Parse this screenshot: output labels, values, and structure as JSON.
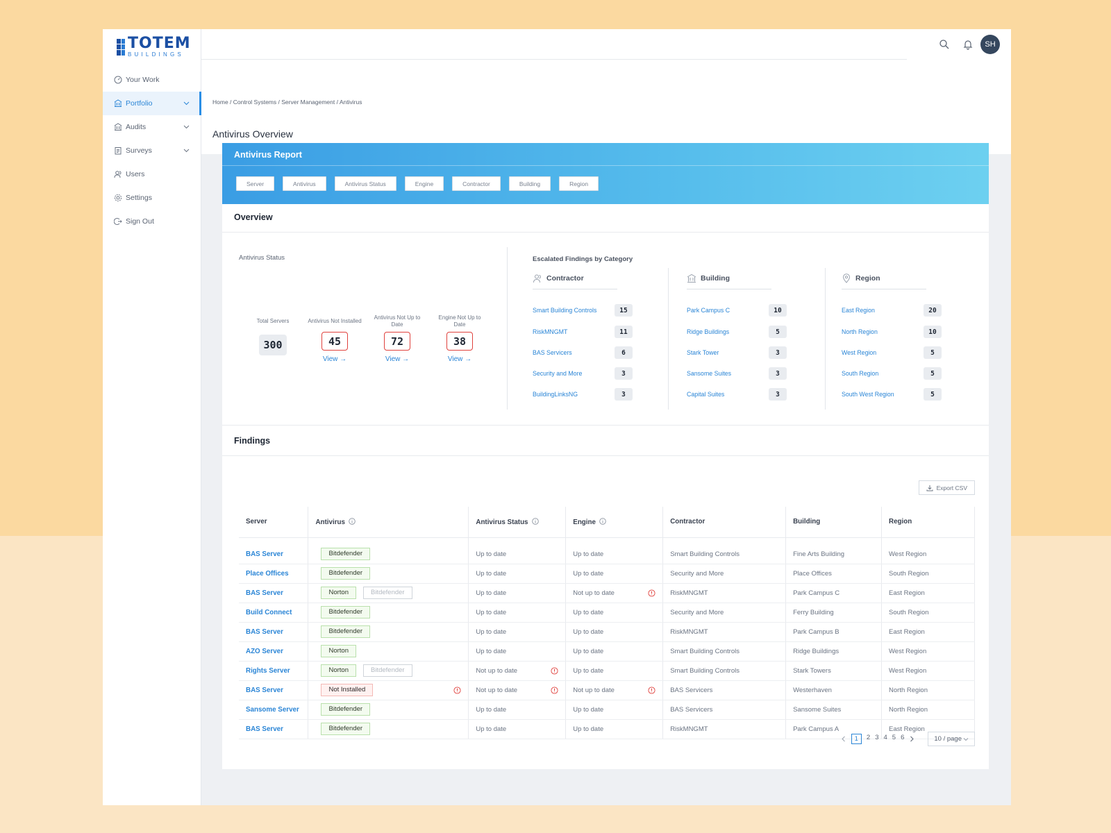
{
  "brand": {
    "name": "TOTEM",
    "sub": "BUILDINGS"
  },
  "sidebar": {
    "items": [
      {
        "label": "Your Work",
        "icon": "dashboard-icon"
      },
      {
        "label": "Portfolio",
        "icon": "building-icon",
        "active": true
      },
      {
        "label": "Audits",
        "icon": "bank-icon"
      },
      {
        "label": "Surveys",
        "icon": "clipboard-icon"
      },
      {
        "label": "Users",
        "icon": "users-icon"
      },
      {
        "label": "Settings",
        "icon": "gear-icon"
      },
      {
        "label": "Sign Out",
        "icon": "logout-icon"
      }
    ]
  },
  "topbar": {
    "avatar_initials": "SH"
  },
  "breadcrumb": [
    "Home",
    "Control Systems",
    "Server Management",
    "Antivirus"
  ],
  "page_title": "Antivirus Overview",
  "report": {
    "title": "Antivirus Report",
    "filters": [
      "Server",
      "Antivirus",
      "Antivirus Status",
      "Engine",
      "Contractor",
      "Building",
      "Region"
    ]
  },
  "overview": {
    "title": "Overview",
    "antivirus_status_label": "Antivirus Status",
    "stats": [
      {
        "label": "Total Servers",
        "value": "300"
      },
      {
        "label": "Antivirus Not Installed",
        "value": "45",
        "link": "View"
      },
      {
        "label": "Antivirus Not Up to Date",
        "value": "72",
        "link": "View"
      },
      {
        "label": "Engine Not Up to Date",
        "value": "38",
        "link": "View"
      }
    ],
    "escalated_title": "Escalated Findings by Category",
    "categories": [
      {
        "title": "Contractor",
        "items": [
          {
            "label": "Smart Building Controls",
            "value": "15"
          },
          {
            "label": "RiskMNGMT",
            "value": "11"
          },
          {
            "label": "BAS Servicers",
            "value": "6"
          },
          {
            "label": "Security and More",
            "value": "3"
          },
          {
            "label": "BuildingLinksNG",
            "value": "3"
          }
        ]
      },
      {
        "title": "Building",
        "items": [
          {
            "label": "Park Campus C",
            "value": "10"
          },
          {
            "label": "Ridge Buildings",
            "value": "5"
          },
          {
            "label": "Stark Tower",
            "value": "3"
          },
          {
            "label": "Sansome Suites",
            "value": "3"
          },
          {
            "label": "Capital Suites",
            "value": "3"
          }
        ]
      },
      {
        "title": "Region",
        "items": [
          {
            "label": "East Region",
            "value": "20"
          },
          {
            "label": "North Region",
            "value": "10"
          },
          {
            "label": "West Region",
            "value": "5"
          },
          {
            "label": "South Region",
            "value": "5"
          },
          {
            "label": "South West Region",
            "value": "5"
          }
        ]
      }
    ]
  },
  "findings": {
    "title": "Findings",
    "export_label": "Export CSV",
    "columns": [
      "Server",
      "Antivirus",
      "Antivirus Status",
      "Engine",
      "Contractor",
      "Building",
      "Region"
    ],
    "rows": [
      {
        "server": "BAS Server",
        "antivirus": [
          "Bitdefender"
        ],
        "status": "Up to date",
        "engine": "Up to date",
        "contractor": "Smart Building Controls",
        "building": "Fine Arts Building",
        "region": "West Region"
      },
      {
        "server": "Place Offices",
        "antivirus": [
          "Bitdefender"
        ],
        "status": "Up to date",
        "engine": "Up to date",
        "contractor": "Security and More",
        "building": "Place Offices",
        "region": "South Region"
      },
      {
        "server": "BAS Server",
        "antivirus": [
          "Norton",
          "Bitdefender"
        ],
        "status": "Up to date",
        "engine": "Not up to date",
        "engine_warn": true,
        "contractor": "RiskMNGMT",
        "building": "Park Campus C",
        "region": "East Region"
      },
      {
        "server": "Build Connect",
        "antivirus": [
          "Bitdefender"
        ],
        "status": "Up to date",
        "engine": "Up to date",
        "contractor": "Security and More",
        "building": "Ferry Building",
        "region": "South Region"
      },
      {
        "server": "BAS Server",
        "antivirus": [
          "Bitdefender"
        ],
        "status": "Up to date",
        "engine": "Up to date",
        "contractor": "RiskMNGMT",
        "building": "Park Campus B",
        "region": "East Region"
      },
      {
        "server": "AZO Server",
        "antivirus": [
          "Norton"
        ],
        "status": "Up to date",
        "engine": "Up to date",
        "contractor": "Smart Building Controls",
        "building": "Ridge Buildings",
        "region": "West Region"
      },
      {
        "server": "Rights Server",
        "antivirus": [
          "Norton",
          "Bitdefender"
        ],
        "status": "Not up to date",
        "status_warn": true,
        "engine": "Up to date",
        "contractor": "Smart Building Controls",
        "building": "Stark Towers",
        "region": "West Region"
      },
      {
        "server": "BAS Server",
        "antivirus": [
          "Not Installed"
        ],
        "antivirus_warn": true,
        "status": "Not up to date",
        "status_warn": true,
        "engine": "Not up to date",
        "engine_warn": true,
        "contractor": "BAS Servicers",
        "building": "Westerhaven",
        "region": "North Region"
      },
      {
        "server": "Sansome Server",
        "antivirus": [
          "Bitdefender"
        ],
        "status": "Up to date",
        "engine": "Up to date",
        "contractor": "BAS Servicers",
        "building": "Sansome Suites",
        "region": "North Region"
      },
      {
        "server": "BAS Server",
        "antivirus": [
          "Bitdefender"
        ],
        "status": "Up to date",
        "engine": "Up to date",
        "contractor": "RiskMNGMT",
        "building": "Park Campus A",
        "region": "East Region"
      }
    ],
    "pagination": {
      "pages": [
        "1",
        "2",
        "3",
        "4",
        "5",
        "6"
      ],
      "current": "1",
      "page_size": "10 / page"
    }
  },
  "colors": {
    "accent": "#2a85d6",
    "warning": "#e0413d",
    "tag_green": "#b9e0ac"
  }
}
